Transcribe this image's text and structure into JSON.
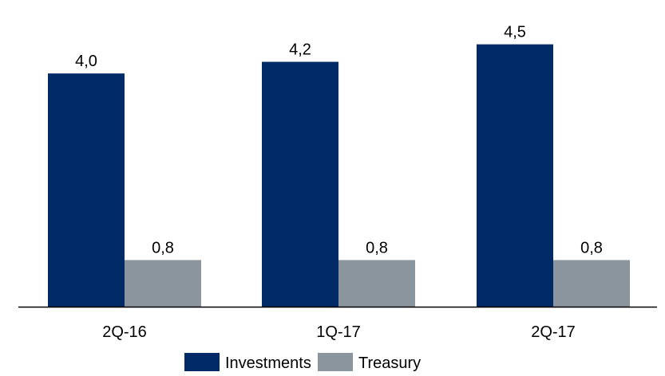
{
  "chart_data": {
    "type": "bar",
    "categories": [
      "2Q-16",
      "1Q-17",
      "2Q-17"
    ],
    "series": [
      {
        "name": "Investments",
        "values": [
          4.0,
          4.2,
          4.5
        ],
        "labels": [
          "4,0",
          "4,2",
          "4,5"
        ],
        "color": "#002B66"
      },
      {
        "name": "Treasury",
        "values": [
          0.8,
          0.8,
          0.8
        ],
        "labels": [
          "0,8",
          "0,8",
          "0,8"
        ],
        "color": "#8A959D"
      }
    ],
    "title": "",
    "xlabel": "",
    "ylabel": "",
    "ylim": [
      0,
      5.26
    ],
    "grid": false,
    "legend_position": "bottom"
  }
}
